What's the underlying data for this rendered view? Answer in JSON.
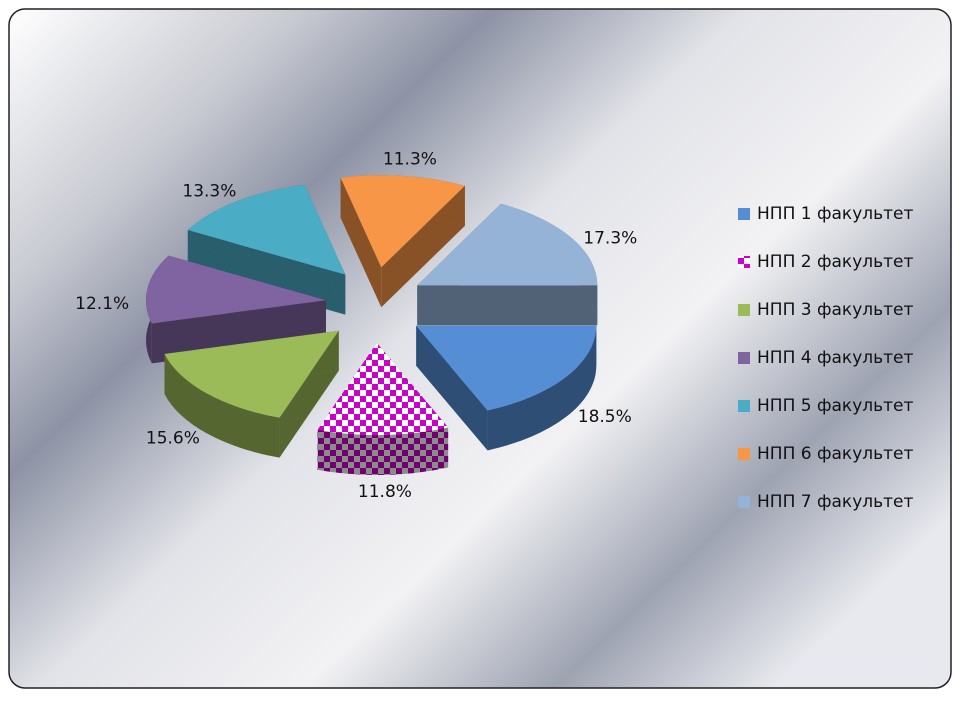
{
  "chart_data": {
    "type": "pie",
    "categories": [
      "НПП 1 факультет",
      "НПП 2 факультет",
      "НПП 3 факультет",
      "НПП 4 факультет",
      "НПП 5 факультет",
      "НПП 6 факультет",
      "НПП 7 факультет"
    ],
    "values": [
      18.5,
      11.8,
      15.6,
      12.1,
      13.3,
      11.3,
      17.3
    ],
    "value_labels": [
      "18.5%",
      "11.8%",
      "15.6%",
      "12.1%",
      "13.3%",
      "11.3%",
      "17.3%"
    ],
    "colors": [
      "#558ed5",
      "#cc00cc",
      "#9bbb59",
      "#8064a2",
      "#4bacc6",
      "#f79646",
      "#95b3d7"
    ],
    "legend": "right"
  }
}
